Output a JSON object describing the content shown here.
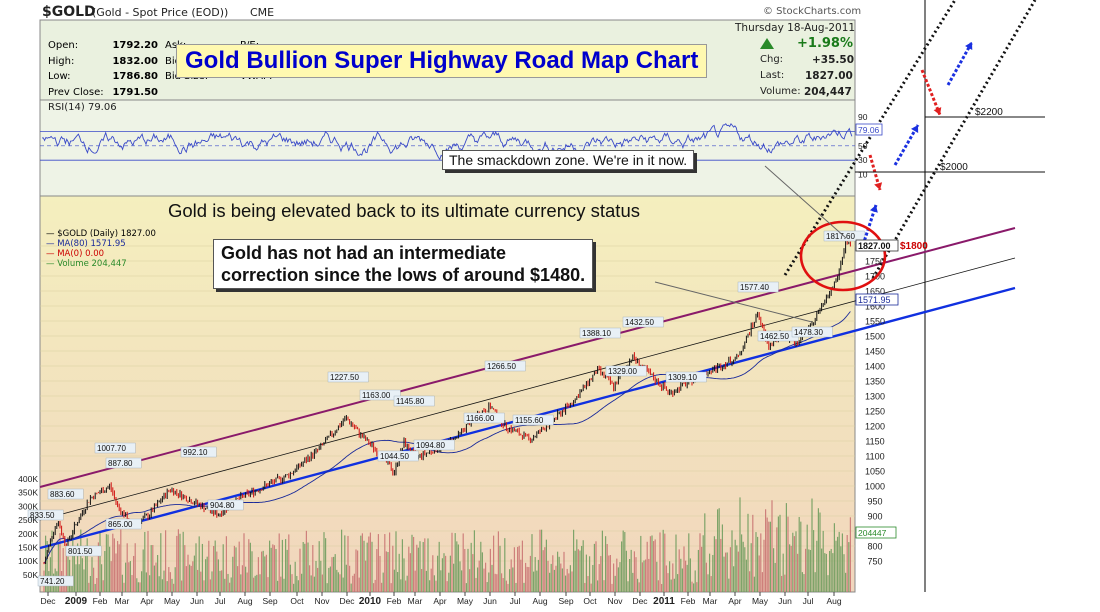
{
  "header": {
    "symbol": "$GOLD",
    "desc": "(Gold - Spot Price (EOD))",
    "exchange": "CME",
    "brand": "© StockCharts.com",
    "date": "Thursday  18-Aug-2011",
    "stats_left": [
      {
        "label": "Open:",
        "value": "1792.20"
      },
      {
        "label": "High:",
        "value": "1832.00"
      },
      {
        "label": "Low:",
        "value": "1786.80"
      },
      {
        "label": "Prev Close:",
        "value": "1791.50"
      }
    ],
    "stats_mid": [
      "Ask:",
      "P/E:",
      "Bid:",
      "Last:",
      "Bid Size:",
      "VWAP:"
    ],
    "change_pct": "+1.98%",
    "change_label": "Chg:",
    "change_value": "+35.50",
    "last_label": "Last:",
    "last_value": "1827.00",
    "volume_label": "Volume:",
    "volume_value": "204,447"
  },
  "title": "Gold Bullion Super Highway Road Map Chart",
  "rsi": {
    "label": "RSI(14) 79.06",
    "value_tag": "79.06",
    "scale": [
      "90",
      "70",
      "50",
      "30",
      "10"
    ]
  },
  "price_legend": [
    {
      "text": "$GOLD (Daily) 1827.00",
      "color": "#000000"
    },
    {
      "text": "MA(80) 1571.95",
      "color": "#1a2a9a"
    },
    {
      "text": "MA(0) 0.00",
      "color": "#cc0000"
    },
    {
      "text": "Volume 204,447",
      "color": "#2a8a2a"
    }
  ],
  "annotations": {
    "elevated": "Gold is being elevated back to its ultimate currency status",
    "smackdown": "The smackdown zone.  We're in it now.",
    "correction_line1": "Gold has not had an intermediate",
    "correction_line2": "correction since the lows of around $1480.",
    "target_2200": "$2200",
    "target_2000": "$2000",
    "level_1800": "$1800"
  },
  "price_tags": {
    "last": "1827.00",
    "ma80": "1571.95",
    "volume": "204447"
  },
  "colors": {
    "price_panel_top": "#f3ecb8",
    "price_panel_bottom": "#f2d2b8",
    "header_bg": "#eaf1df",
    "rsi_line": "#3a4ac8",
    "channel_upper": "#8a1a6a",
    "channel_lower": "#1030e0",
    "title_text": "#0000cc",
    "title_bg": "#fff9b0",
    "up_bar": "#111111",
    "down_bar": "#d01010",
    "circle": "#e01010"
  },
  "chart_data": {
    "type": "line",
    "title": "$GOLD (Daily)",
    "x_tick_labels": [
      "Dec",
      "2009",
      "Feb",
      "Mar",
      "Apr",
      "May",
      "Jun",
      "Jul",
      "Aug",
      "Sep",
      "Oct",
      "Nov",
      "Dec",
      "2010",
      "Feb",
      "Mar",
      "Apr",
      "May",
      "Jun",
      "Jul",
      "Aug",
      "Sep",
      "Oct",
      "Nov",
      "Dec",
      "2011",
      "Feb",
      "Mar",
      "Apr",
      "May",
      "Jun",
      "Jul",
      "Aug"
    ],
    "y_tick_labels": [
      "750",
      "800",
      "850",
      "900",
      "950",
      "1000",
      "1050",
      "1100",
      "1150",
      "1200",
      "1250",
      "1300",
      "1350",
      "1400",
      "1450",
      "1500",
      "1550",
      "1600",
      "1650",
      "1700",
      "1750",
      "1800"
    ],
    "volume_tick_labels": [
      "400K",
      "350K",
      "300K",
      "250K",
      "200K",
      "150K",
      "100K",
      "50K"
    ],
    "ylim": [
      720,
      1840
    ],
    "series": [
      {
        "name": "$GOLD",
        "points": [
          [
            "Nov-2008",
            741.2
          ],
          [
            "Dec-2008",
            833.5
          ],
          [
            "Dec-2008",
            883.6
          ],
          [
            "Jan-2009",
            801.5
          ],
          [
            "Feb-2009",
            1007.7
          ],
          [
            "Mar-2009",
            887.8
          ],
          [
            "Apr-2009",
            865.0
          ],
          [
            "May-2009",
            992.1
          ],
          [
            "Jul-2009",
            904.8
          ],
          [
            "Sep-2009",
            1000
          ],
          [
            "Dec-2009",
            1227.5
          ],
          [
            "Dec-2009",
            1163.0
          ],
          [
            "Feb-2010",
            1044.5
          ],
          [
            "Jan-2010",
            1145.8
          ],
          [
            "Mar-2010",
            1094.8
          ],
          [
            "May-2010",
            1166.0
          ],
          [
            "Jun-2010",
            1266.5
          ],
          [
            "Jul-2010",
            1155.6
          ],
          [
            "Nov-2010",
            1388.1
          ],
          [
            "Jan-2011",
            1329.0
          ],
          [
            "Dec-2010",
            1432.5
          ],
          [
            "Jan-2011",
            1309.1
          ],
          [
            "May-2011",
            1577.4
          ],
          [
            "May-2011",
            1462.5
          ],
          [
            "Jul-2011",
            1478.3
          ],
          [
            "Aug-2011",
            1817.6
          ],
          [
            "Aug-2011",
            1827.0
          ]
        ]
      }
    ],
    "data_labels": [
      "741.20",
      "833.50",
      "883.60",
      "801.50",
      "1007.70",
      "887.80",
      "865.00",
      "992.10",
      "904.80",
      "1227.50",
      "1163.00",
      "1145.80",
      "1044.50",
      "1094.80",
      "1166.00",
      "1266.50",
      "1155.60",
      "1388.10",
      "1329.00",
      "1432.50",
      "1309.10",
      "1577.40",
      "1462.50",
      "1478.30",
      "1817.60"
    ]
  }
}
